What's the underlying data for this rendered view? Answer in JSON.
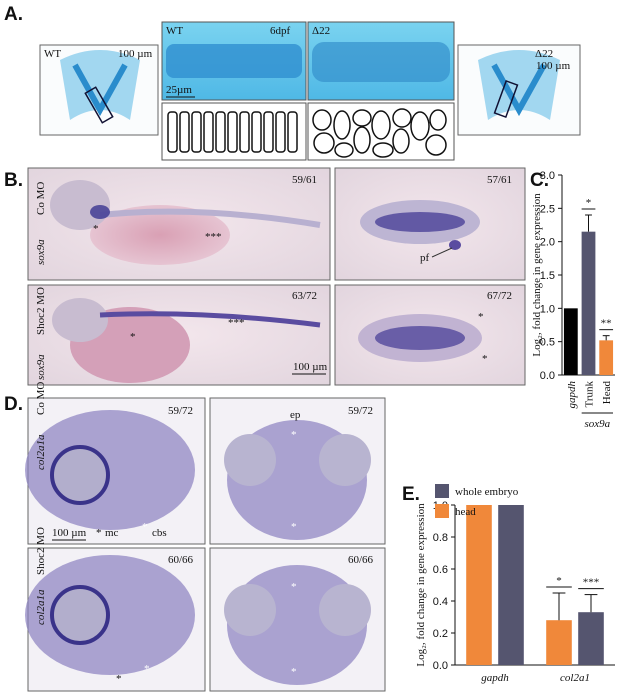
{
  "figure": {
    "panel_labels": [
      "A.",
      "B.",
      "C.",
      "D.",
      "E."
    ],
    "panel_a": {
      "left_image": {
        "genotype": "WT",
        "scale": "100 µm"
      },
      "wt_closeup": {
        "genotype": "WT",
        "stage": "6dpf",
        "scale": "25µm"
      },
      "mutant_closeup": {
        "genotype": "Δ22"
      },
      "right_image": {
        "genotype": "Δ22",
        "scale": "100 µm"
      }
    },
    "panel_b": {
      "probe": "sox9a",
      "rows": [
        {
          "condition": "Co MO",
          "lateral_count": "59/61",
          "dorsal_count": "57/61",
          "lateral_markers": [
            "*",
            "***"
          ]
        },
        {
          "condition": "Shoc2 MO",
          "lateral_count": "63/72",
          "dorsal_count": "67/72",
          "lateral_markers": [
            "*",
            "***"
          ],
          "dorsal_markers": [
            "*",
            "*"
          ]
        }
      ],
      "fin_label": "pf",
      "scale": "100 µm"
    },
    "panel_d": {
      "probe": "col2a1a",
      "rows": [
        {
          "condition": "Co MO",
          "lateral_count": "59/72",
          "dorsal_count": "59/72",
          "lateral_markers": [
            "*",
            "*"
          ],
          "dorsal_markers": [
            "*",
            "*"
          ]
        },
        {
          "condition": "Shoc2 MO",
          "lateral_count": "60/66",
          "dorsal_count": "60/66",
          "lateral_markers": [
            "*",
            "*"
          ],
          "dorsal_markers": [
            "*",
            "*"
          ]
        }
      ],
      "mc_label": "mc",
      "cbs_label": "cbs",
      "ep_label": "ep",
      "scale": "100 µm"
    }
  },
  "chart_data": [
    {
      "type": "bar",
      "y_label": "Log₂, fold change in gene expression",
      "categories": [
        "gapdh",
        "Trunk",
        "Head"
      ],
      "group_label": "sox9a",
      "values": [
        1,
        2.15,
        0.52
      ],
      "errors": [
        null,
        0.25,
        0.07
      ],
      "significance": [
        null,
        "*",
        "**"
      ],
      "colors": [
        "#000000",
        "#55556f",
        "#f0883a"
      ],
      "ylim": [
        0,
        3
      ],
      "yticks": [
        {
          "value": 0,
          "label": "0.0"
        },
        {
          "value": 0.5,
          "label": "0.5"
        },
        {
          "value": 1,
          "label": "1.0"
        },
        {
          "value": 1.5,
          "label": "1.5"
        },
        {
          "value": 2,
          "label": "2.0"
        },
        {
          "value": 2.5,
          "label": "2.5"
        },
        {
          "value": 3,
          "label": "3.0"
        }
      ]
    },
    {
      "type": "bar",
      "y_label": "Log₂, fold change in gene expression",
      "categories": [
        "gapdh",
        "col2a1"
      ],
      "series": [
        {
          "name": "whole embryo",
          "color": "#55556f",
          "values": [
            1,
            0.33
          ],
          "errors": [
            null,
            0.11
          ],
          "significance": [
            null,
            "***"
          ]
        },
        {
          "name": "head",
          "color": "#f0883a",
          "values": [
            1,
            0.28
          ],
          "errors": [
            null,
            0.17
          ],
          "significance": [
            null,
            "*"
          ]
        }
      ],
      "ylim": [
        0,
        1
      ],
      "yticks": [
        {
          "value": 0,
          "label": "0.0"
        },
        {
          "value": 0.2,
          "label": "0.2"
        },
        {
          "value": 0.4,
          "label": "0.4"
        },
        {
          "value": 0.6,
          "label": "0.6"
        },
        {
          "value": 0.8,
          "label": "0.8"
        },
        {
          "value": 1,
          "label": "1.0"
        }
      ]
    }
  ]
}
